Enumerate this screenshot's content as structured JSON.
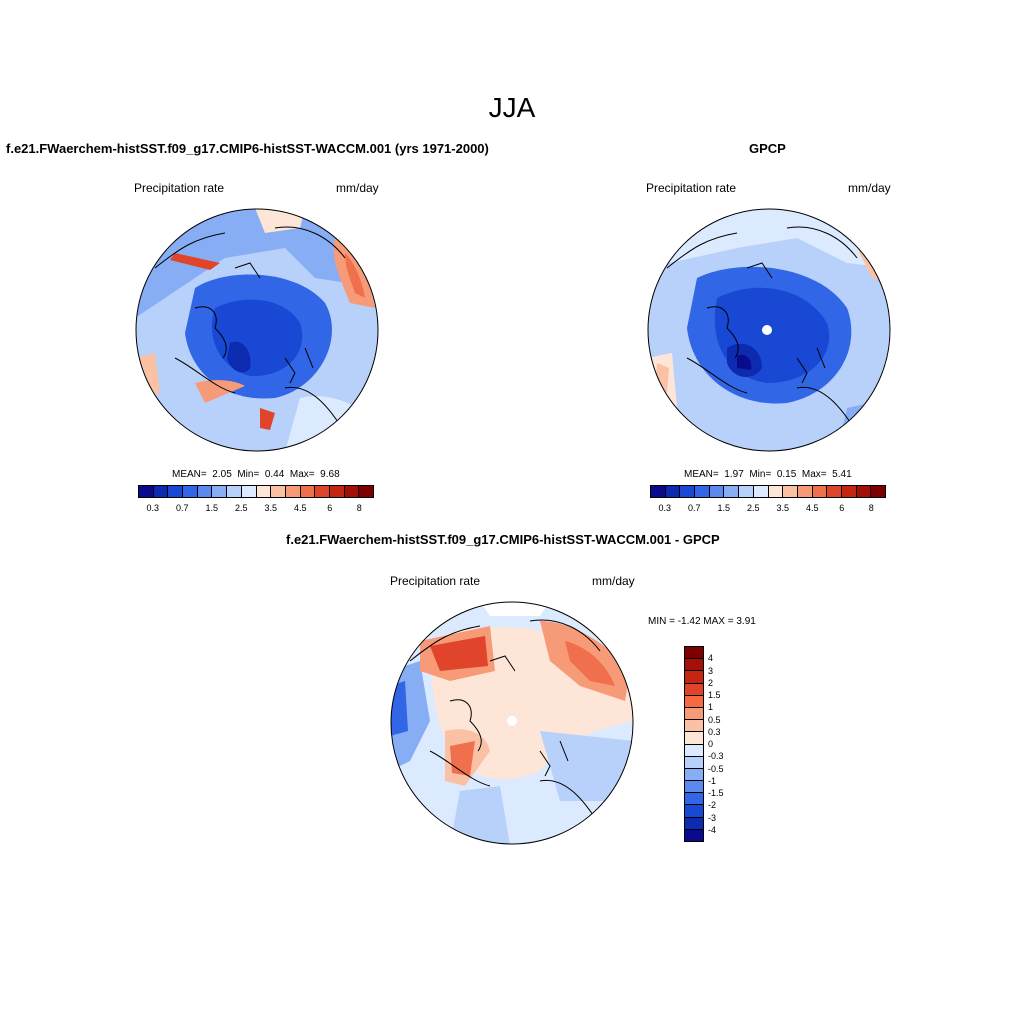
{
  "season": "JJA",
  "panels": {
    "model": {
      "title": "f.e21.FWaerchem-histSST.f09_g17.CMIP6-histSST-WACCM.001 (yrs 1971-2000)",
      "left_label": "Precipitation rate",
      "right_label": "mm/day",
      "mean_label": "MEAN=",
      "mean": "2.05",
      "min_label": "Min=",
      "min": "0.44",
      "max_label": "Max=",
      "max": "9.68",
      "colorbar_ticks": [
        "0.3",
        "0.7",
        "1.5",
        "2.5",
        "3.5",
        "4.5",
        "6",
        "8"
      ]
    },
    "obs": {
      "title": "GPCP",
      "left_label": "Precipitation rate",
      "right_label": "mm/day",
      "mean_label": "MEAN=",
      "mean": "1.97",
      "min_label": "Min=",
      "min": "0.15",
      "max_label": "Max=",
      "max": "5.41",
      "colorbar_ticks": [
        "0.3",
        "0.7",
        "1.5",
        "2.5",
        "3.5",
        "4.5",
        "6",
        "8"
      ]
    },
    "diff": {
      "title": "f.e21.FWaerchem-histSST.f09_g17.CMIP6-histSST-WACCM.001 - GPCP",
      "left_label": "Precipitation rate",
      "right_label": "mm/day",
      "minmax_text": "MIN =  -1.42 MAX =   3.91",
      "colorbar_ticks": [
        "4",
        "3",
        "2",
        "1.5",
        "1",
        "0.5",
        "0.3",
        "0",
        "-0.3",
        "-0.5",
        "-1",
        "-1.5",
        "-2",
        "-3",
        "-4"
      ]
    }
  },
  "colors": {
    "precip_scale": [
      "#0a0a8c",
      "#0c2bb0",
      "#1848d4",
      "#3166e6",
      "#5a89f0",
      "#87aef5",
      "#b8d1fa",
      "#dceaff",
      "#fde6d8",
      "#fbc1a5",
      "#f79a78",
      "#f0704d",
      "#e0442a",
      "#c42612",
      "#a40f08",
      "#7d0000"
    ],
    "diff_scale": [
      "#7d0000",
      "#a40f08",
      "#c42612",
      "#e0442a",
      "#f56a3e",
      "#f79a78",
      "#fbc1a5",
      "#fde6d8",
      "#dceaff",
      "#b8d1fa",
      "#87aef5",
      "#5a89f0",
      "#3166e6",
      "#1848d4",
      "#0c2bb0",
      "#0a0a8c"
    ]
  }
}
